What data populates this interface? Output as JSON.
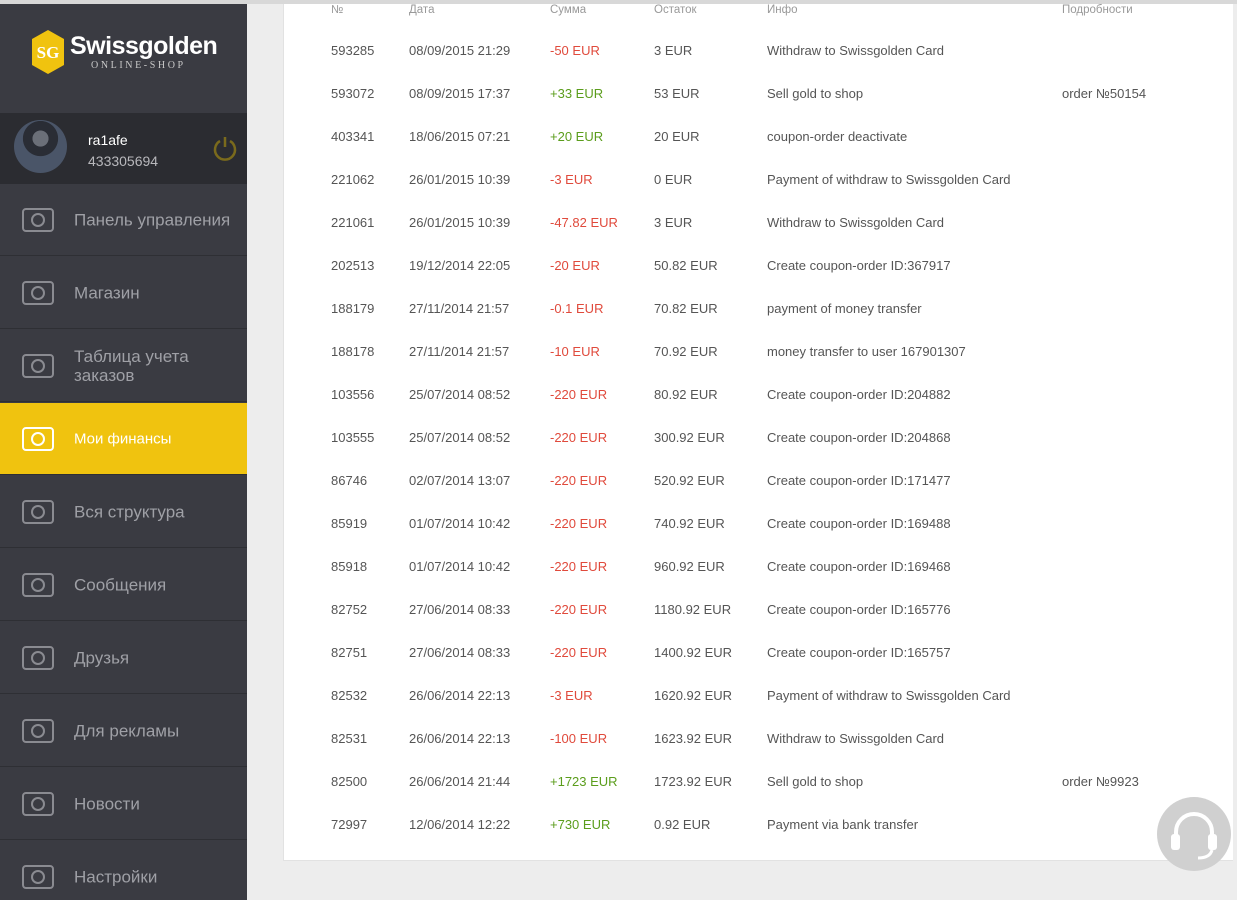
{
  "sidebar": {
    "logo": {
      "mark": "SG",
      "name": "Swissgolden",
      "tagline": "ONLINE-SHOP"
    },
    "user": {
      "name": "ra1afe",
      "id": "433305694"
    },
    "menu": [
      {
        "label": "Панель управления",
        "active": false
      },
      {
        "label": "Магазин",
        "active": false
      },
      {
        "label": "Таблица учета заказов",
        "active": false
      },
      {
        "label": "Мои финансы",
        "active": true
      },
      {
        "label": "Вся структура",
        "active": false
      },
      {
        "label": "Сообщения",
        "active": false
      },
      {
        "label": "Друзья",
        "active": false
      },
      {
        "label": "Для рекламы",
        "active": false
      },
      {
        "label": "Новости",
        "active": false
      },
      {
        "label": "Настройки",
        "active": false
      }
    ]
  },
  "table": {
    "headers": [
      "№",
      "Дата",
      "Сумма",
      "Остаток",
      "Инфо",
      "Подробности"
    ],
    "rows": [
      [
        "593285",
        "08/09/2015 21:29",
        "-50 EUR",
        "3 EUR",
        "Withdraw to Swissgolden Card",
        null
      ],
      [
        "593072",
        "08/09/2015 17:37",
        "+33 EUR",
        "53 EUR",
        "Sell gold to shop",
        "order №50154"
      ],
      [
        "403341",
        "18/06/2015 07:21",
        "+20 EUR",
        "20 EUR",
        "coupon-order deactivate",
        null
      ],
      [
        "221062",
        "26/01/2015 10:39",
        "-3 EUR",
        "0 EUR",
        "Payment of withdraw to Swissgolden Card",
        null
      ],
      [
        "221061",
        "26/01/2015 10:39",
        "-47.82 EUR",
        "3 EUR",
        "Withdraw to Swissgolden Card",
        null
      ],
      [
        "202513",
        "19/12/2014 22:05",
        "-20 EUR",
        "50.82 EUR",
        "Create coupon-order ID:367917",
        null
      ],
      [
        "188179",
        "27/11/2014 21:57",
        "-0.1 EUR",
        "70.82 EUR",
        "payment of money transfer",
        null
      ],
      [
        "188178",
        "27/11/2014 21:57",
        "-10 EUR",
        "70.92 EUR",
        "money transfer to user 167901307",
        null
      ],
      [
        "103556",
        "25/07/2014 08:52",
        "-220 EUR",
        "80.92 EUR",
        "Create coupon-order ID:204882",
        null
      ],
      [
        "103555",
        "25/07/2014 08:52",
        "-220 EUR",
        "300.92 EUR",
        "Create coupon-order ID:204868",
        null
      ],
      [
        "86746",
        "02/07/2014 13:07",
        "-220 EUR",
        "520.92 EUR",
        "Create coupon-order ID:171477",
        null
      ],
      [
        "85919",
        "01/07/2014 10:42",
        "-220 EUR",
        "740.92 EUR",
        "Create coupon-order ID:169488",
        null
      ],
      [
        "85918",
        "01/07/2014 10:42",
        "-220 EUR",
        "960.92 EUR",
        "Create coupon-order ID:169468",
        null
      ],
      [
        "82752",
        "27/06/2014 08:33",
        "-220 EUR",
        "1180.92 EUR",
        "Create coupon-order ID:165776",
        null
      ],
      [
        "82751",
        "27/06/2014 08:33",
        "-220 EUR",
        "1400.92 EUR",
        "Create coupon-order ID:165757",
        null
      ],
      [
        "82532",
        "26/06/2014 22:13",
        "-3 EUR",
        "1620.92 EUR",
        "Payment of withdraw to Swissgolden Card",
        null
      ],
      [
        "82531",
        "26/06/2014 22:13",
        "-100 EUR",
        "1623.92 EUR",
        "Withdraw to Swissgolden Card",
        null
      ],
      [
        "82500",
        "26/06/2014 21:44",
        "+1723 EUR",
        "1723.92 EUR",
        "Sell gold to shop",
        "order №9923"
      ],
      [
        "72997",
        "12/06/2014 12:22",
        "+730 EUR",
        "0.92 EUR",
        "Payment via bank transfer",
        null
      ]
    ]
  }
}
